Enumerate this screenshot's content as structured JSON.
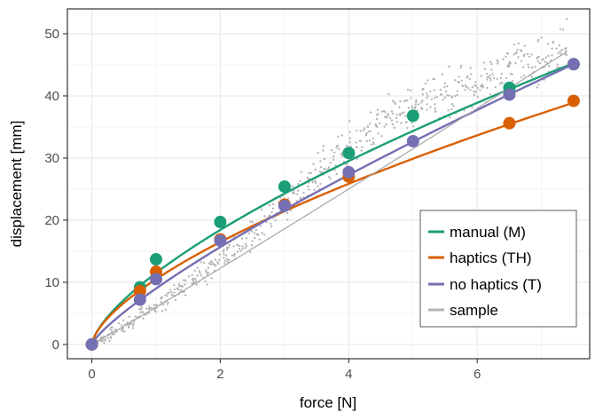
{
  "chart_data": {
    "type": "scatter",
    "title": "",
    "xlabel": "force [N]",
    "ylabel": "displacement [mm]",
    "xlim": [
      -0.38,
      7.75
    ],
    "ylim": [
      -2.3,
      54.0
    ],
    "x_ticks": [
      0,
      2,
      4,
      6
    ],
    "x_tick_labels": [
      "0",
      "2",
      "4",
      "6"
    ],
    "y_ticks": [
      0,
      10,
      20,
      30,
      40,
      50
    ],
    "y_tick_labels": [
      "0",
      "10",
      "20",
      "30",
      "40",
      "50"
    ],
    "x_minor_ticks": [
      1,
      3,
      5,
      7
    ],
    "y_minor_ticks": [
      5,
      15,
      25,
      35,
      45
    ],
    "grid": true,
    "legend_position": "bottom-right",
    "legend_labels": [
      "manual (M)",
      "haptics (TH)",
      "no haptics (T)",
      "sample"
    ],
    "series": [
      {
        "name": "manual (M)",
        "color": "#1b9e77",
        "points": [
          [
            0,
            0
          ],
          [
            0.75,
            9.2
          ],
          [
            1,
            13.7
          ],
          [
            2,
            19.7
          ],
          [
            3,
            25.4
          ],
          [
            4,
            30.8
          ],
          [
            5,
            36.8
          ],
          [
            6.5,
            41.3
          ],
          [
            7.5,
            45.1
          ]
        ],
        "fit": {
          "model": "power",
          "a": 11.5,
          "b": 0.68
        }
      },
      {
        "name": "haptics (TH)",
        "color": "#d95f02",
        "points": [
          [
            0,
            0
          ],
          [
            0.75,
            8.6
          ],
          [
            1,
            11.7
          ],
          [
            2,
            16.9
          ],
          [
            3,
            22.5
          ],
          [
            4,
            27.0
          ],
          [
            6.5,
            35.6
          ],
          [
            7.5,
            39.2
          ]
        ],
        "fit": {
          "model": "power",
          "a": 10.5,
          "b": 0.65
        }
      },
      {
        "name": "no haptics (T)",
        "color": "#7570b3",
        "points": [
          [
            0,
            0
          ],
          [
            0.75,
            7.2
          ],
          [
            1,
            10.5
          ],
          [
            2,
            16.7
          ],
          [
            3,
            22.3
          ],
          [
            4,
            27.7
          ],
          [
            5,
            32.7
          ],
          [
            6.5,
            40.2
          ],
          [
            7.5,
            45.1
          ]
        ],
        "fit": {
          "model": "power",
          "a": 9.0,
          "b": 0.8
        }
      },
      {
        "name": "sample",
        "color": "#b3b3b3",
        "x_range": [
          0,
          7.4
        ],
        "fit": {
          "model": "power",
          "a": 6.0,
          "b": 1.03
        },
        "points": [
          [
            0.05,
            0.3
          ],
          [
            0.15,
            0.9
          ],
          [
            0.25,
            1.4
          ],
          [
            0.35,
            2.1
          ],
          [
            0.45,
            2.6
          ],
          [
            0.55,
            3.4
          ],
          [
            0.65,
            3.9
          ],
          [
            0.75,
            4.6
          ],
          [
            0.85,
            5.3
          ],
          [
            0.95,
            5.9
          ],
          [
            1.05,
            6.8
          ],
          [
            1.15,
            7.2
          ],
          [
            1.25,
            8.1
          ],
          [
            1.35,
            8.6
          ],
          [
            1.45,
            9.4
          ],
          [
            1.55,
            10.1
          ],
          [
            1.65,
            10.8
          ],
          [
            1.75,
            11.6
          ],
          [
            1.85,
            12.4
          ],
          [
            1.95,
            13.3
          ],
          [
            2.05,
            14.1
          ],
          [
            2.15,
            15.0
          ],
          [
            2.25,
            15.8
          ],
          [
            2.35,
            16.7
          ],
          [
            2.45,
            17.4
          ],
          [
            2.55,
            18.3
          ],
          [
            2.65,
            19.1
          ],
          [
            2.75,
            20.0
          ],
          [
            2.85,
            20.9
          ],
          [
            2.95,
            21.9
          ],
          [
            3.05,
            22.9
          ],
          [
            3.15,
            23.9
          ],
          [
            3.25,
            24.8
          ],
          [
            3.35,
            25.8
          ],
          [
            3.45,
            26.6
          ],
          [
            3.55,
            27.7
          ],
          [
            3.65,
            28.5
          ],
          [
            3.75,
            29.4
          ],
          [
            3.85,
            30.3
          ],
          [
            3.95,
            31.3
          ],
          [
            4.05,
            32.0
          ],
          [
            4.15,
            32.8
          ],
          [
            4.25,
            33.6
          ],
          [
            4.35,
            34.3
          ],
          [
            4.45,
            35.0
          ],
          [
            4.55,
            35.6
          ],
          [
            4.65,
            36.2
          ],
          [
            4.75,
            36.9
          ],
          [
            4.85,
            37.4
          ],
          [
            4.95,
            37.9
          ],
          [
            5.05,
            38.4
          ],
          [
            5.15,
            38.8
          ],
          [
            5.25,
            39.3
          ],
          [
            5.35,
            39.6
          ],
          [
            5.45,
            40.1
          ],
          [
            5.55,
            40.5
          ],
          [
            5.65,
            40.9
          ],
          [
            5.75,
            41.3
          ],
          [
            5.85,
            41.7
          ],
          [
            5.95,
            42.0
          ],
          [
            6.05,
            42.5
          ],
          [
            6.15,
            42.9
          ],
          [
            6.25,
            43.3
          ],
          [
            6.35,
            43.6
          ],
          [
            6.45,
            44.0
          ],
          [
            6.55,
            44.3
          ],
          [
            6.65,
            44.8
          ],
          [
            6.75,
            45.1
          ],
          [
            6.85,
            45.5
          ],
          [
            6.95,
            45.9
          ],
          [
            7.05,
            46.3
          ],
          [
            7.15,
            46.6
          ],
          [
            7.25,
            47.0
          ],
          [
            7.35,
            47.4
          ]
        ]
      }
    ]
  }
}
